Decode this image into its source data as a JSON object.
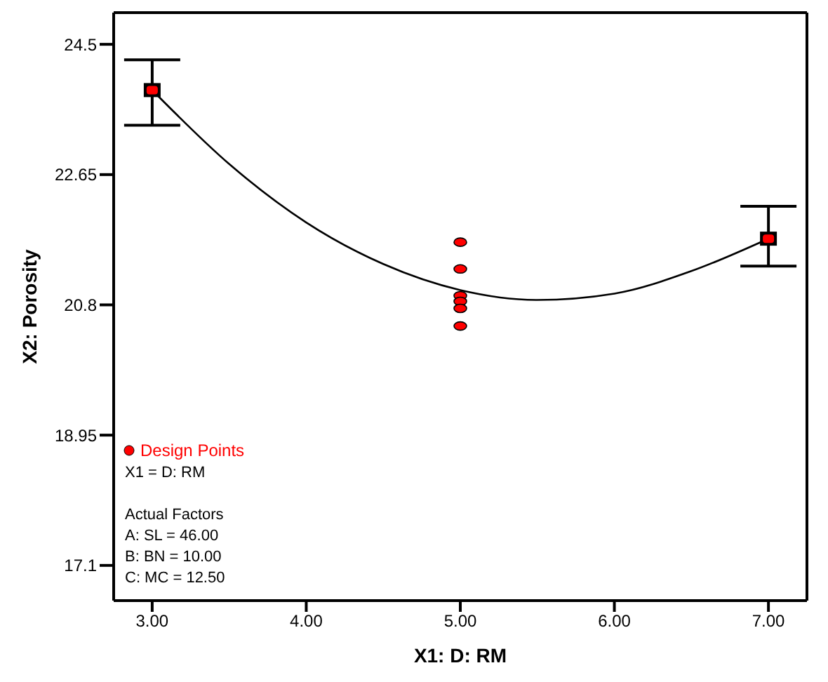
{
  "chart_data": {
    "type": "scatter",
    "xlabel": "X1: D: RM",
    "ylabel": "X2: Porosity",
    "xlim": [
      2.75,
      7.25
    ],
    "ylim": [
      16.6,
      24.95
    ],
    "xticks": [
      {
        "value": 3,
        "label": "3.00"
      },
      {
        "value": 4,
        "label": "4.00"
      },
      {
        "value": 5,
        "label": "5.00"
      },
      {
        "value": 6,
        "label": "6.00"
      },
      {
        "value": 7,
        "label": "7.00"
      }
    ],
    "yticks": [
      17.1,
      18.95,
      20.8,
      22.65,
      24.5
    ],
    "grid": false,
    "legend": "bottom left",
    "series": [
      {
        "type": "line",
        "color": "#000000",
        "marker": "none",
        "x": [
          3,
          3.5,
          4,
          4.5,
          5,
          5.5,
          6,
          6.5,
          7
        ],
        "values": [
          23.85,
          22.8,
          21.97,
          21.38,
          21.01,
          20.87,
          20.96,
          21.28,
          21.74
        ]
      },
      {
        "type": "scatter",
        "color": "#ff0000",
        "marker": "square",
        "x": [
          3,
          7
        ],
        "values": [
          23.85,
          21.74
        ],
        "errors": [
          [
            23.35,
            24.28
          ],
          [
            21.35,
            22.2
          ]
        ]
      },
      {
        "type": "scatter",
        "name": "Design Points",
        "color": "#ff0000",
        "marker": "circle",
        "x": [
          5,
          5,
          5,
          5,
          5,
          5
        ],
        "values": [
          21.69,
          21.31,
          20.93,
          20.85,
          20.75,
          20.5
        ]
      }
    ],
    "annotations": [
      "X1 = D: RM",
      "Actual Factors",
      "A: SL = 46.00",
      "B: BN = 10.00",
      "C: MC = 12.50"
    ]
  }
}
